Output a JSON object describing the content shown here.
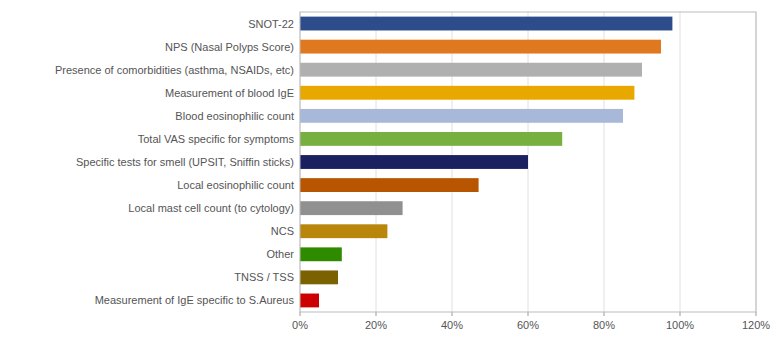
{
  "chart_data": {
    "type": "bar",
    "orientation": "horizontal",
    "categories": [
      "Measurement of IgE specific to S.Aureus",
      "TNSS / TSS",
      "Other",
      "NCS",
      "Local mast cell count (to cytology)",
      "Local eosinophilic count",
      "Specific tests for smell (UPSIT, Sniffin sticks)",
      "Total VAS specific for symptoms",
      "Blood eosinophilic count",
      "Measurement of blood IgE",
      "Presence of comorbidities (asthma, NSAIDs, etc)",
      "NPS (Nasal Polyps Score)",
      "SNOT-22"
    ],
    "values": [
      5,
      10,
      11,
      23,
      27,
      47,
      60,
      69,
      85,
      88,
      90,
      95,
      98
    ],
    "colors": [
      "#cc0000",
      "#7a6200",
      "#2e8b00",
      "#b8860b",
      "#909090",
      "#b85500",
      "#1a2060",
      "#78b040",
      "#a8b8d8",
      "#e8a800",
      "#b0b0b0",
      "#e07820",
      "#2c4c8c"
    ],
    "xlim": [
      0,
      120
    ],
    "xticks": [
      {
        "value": 0,
        "label": "0%"
      },
      {
        "value": 20,
        "label": "20%"
      },
      {
        "value": 40,
        "label": "40%"
      },
      {
        "value": 60,
        "label": "60%"
      },
      {
        "value": 80,
        "label": "80%"
      },
      {
        "value": 100,
        "label": "100%"
      },
      {
        "value": 120,
        "label": "120%"
      }
    ],
    "grid": true
  }
}
